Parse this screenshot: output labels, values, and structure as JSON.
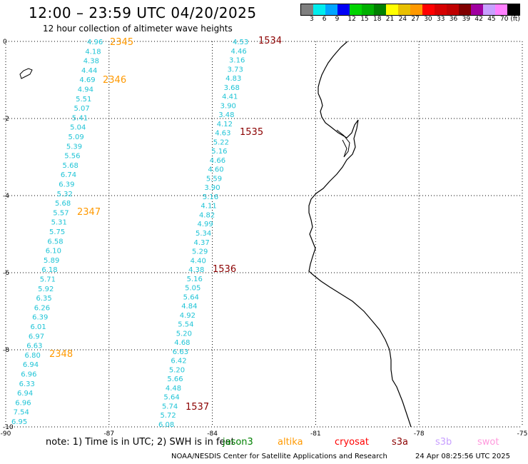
{
  "header": {
    "title": "12:00 – 23:59 UTC 04/20/2025",
    "subtitle": "12 hour collection of altimeter wave heights"
  },
  "colorbar": {
    "colors": [
      "#7f7f7f",
      "#00eded",
      "#00a5ff",
      "#0000f5",
      "#00d400",
      "#00b000",
      "#008000",
      "#ffff00",
      "#e8c000",
      "#ff9900",
      "#ff0000",
      "#d60000",
      "#c00000",
      "#800000",
      "#a000a0",
      "#c8a0ff",
      "#ff80ff",
      "#000000"
    ],
    "labels": [
      "3",
      "6",
      "9",
      "12",
      "15",
      "18",
      "21",
      "24",
      "27",
      "30",
      "33",
      "36",
      "39",
      "42",
      "45",
      "70 (ft)"
    ]
  },
  "axes": {
    "x_ticks": [
      "-90",
      "-87",
      "-84",
      "-81",
      "-78",
      "-75"
    ],
    "y_ticks": [
      "0",
      "-2",
      "-4",
      "-6",
      "-8",
      "-10"
    ]
  },
  "track_left": {
    "values": [
      "4.96",
      "4.18",
      "4.38",
      "4.44",
      "4.69",
      "4.94",
      "5.51",
      "5.07",
      "5.41",
      "5.04",
      "5.09",
      "5.39",
      "5.56",
      "5.68",
      "6.74",
      "6.39",
      "5.32",
      "5.68",
      "5.57",
      "5.31",
      "5.75",
      "6.58",
      "6.10",
      "5.89",
      "6.18",
      "5.71",
      "5.92",
      "6.35",
      "6.26",
      "6.39",
      "6.01",
      "6.97",
      "6.63",
      "6.80",
      "6.94",
      "6.96",
      "6.33",
      "6.94",
      "6.96",
      "7.54",
      "6.95"
    ],
    "pass_labels": [
      "2345",
      "2346",
      "2347",
      "2348"
    ],
    "pass_color": "#ff9900"
  },
  "track_right": {
    "values": [
      "4.53",
      "4.46",
      "3.16",
      "3.73",
      "4.83",
      "3.68",
      "4.41",
      "3.90",
      "3.48",
      "4.12",
      "4.63",
      "5.22",
      "5.16",
      "4.66",
      "4.60",
      "5.59",
      "3.90",
      "5.16",
      "4.11",
      "4.82",
      "4.99",
      "5.34",
      "4.37",
      "5.29",
      "4.40",
      "4.38",
      "5.16",
      "5.05",
      "5.64",
      "4.84",
      "4.92",
      "5.54",
      "5.20",
      "4.68",
      "6.63",
      "6.42",
      "5.20",
      "5.66",
      "4.48",
      "5.64",
      "5.74",
      "5.72",
      "6.08"
    ],
    "pass_labels": [
      "1534",
      "1535",
      "1536",
      "1537"
    ],
    "pass_color": "#8b0000"
  },
  "legend": {
    "note": "note:  1) Time is in UTC;  2) SWH is in feet",
    "items": [
      {
        "label": "jason3",
        "color": "#008000"
      },
      {
        "label": "altika",
        "color": "#ff9900"
      },
      {
        "label": "cryosat",
        "color": "#ff0000"
      },
      {
        "label": "s3a",
        "color": "#8b0000"
      },
      {
        "label": "s3b",
        "color": "#c8a0ff"
      },
      {
        "label": "swot",
        "color": "#ff99dd"
      }
    ]
  },
  "footer": {
    "credit": "NOAA/NESDIS Center for Satellite Applications and Research",
    "timestamp": "24 Apr 08:25:56 UTC 2025"
  }
}
